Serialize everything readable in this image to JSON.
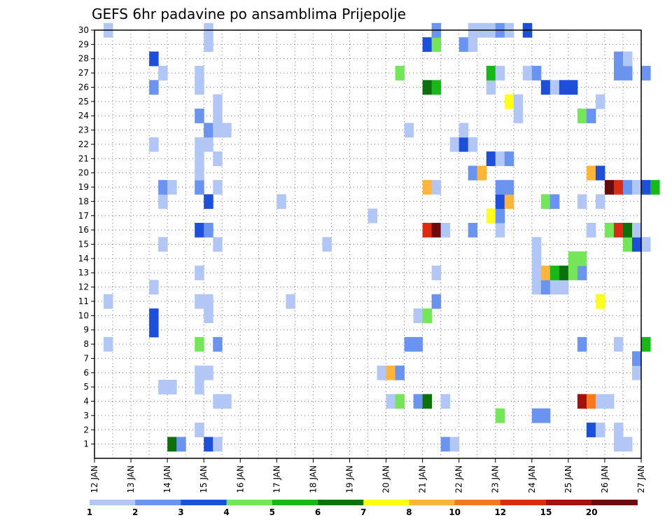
{
  "chart_data": {
    "type": "heatmap",
    "title": "GEFS 6hr padavine po ansamblima Prijepolje",
    "y_ticks": [
      "1",
      "2",
      "3",
      "4",
      "5",
      "6",
      "7",
      "8",
      "9",
      "10",
      "11",
      "12",
      "13",
      "14",
      "15",
      "16",
      "17",
      "18",
      "19",
      "20",
      "21",
      "22",
      "23",
      "24",
      "25",
      "26",
      "27",
      "28",
      "29",
      "30"
    ],
    "x_ticks": [
      "12 JAN",
      "13 JAN",
      "14 JAN",
      "15 JAN",
      "16 JAN",
      "17 JAN",
      "18 JAN",
      "19 JAN",
      "20 JAN",
      "21 JAN",
      "22 JAN",
      "23 JAN",
      "24 JAN",
      "25 JAN",
      "26 JAN",
      "27 JAN"
    ],
    "x_range": [
      "12 JAN",
      "27 JAN"
    ],
    "y_range": [
      0,
      30
    ],
    "grid": "dotted",
    "legend_placement": "bottom",
    "legend_levels": [
      "1",
      "2",
      "3",
      "4",
      "5",
      "6",
      "7",
      "8",
      "10",
      "12",
      "15",
      "20"
    ],
    "legend_colors": [
      "#b3c7f7",
      "#6b93f0",
      "#1e4fd8",
      "#75e55a",
      "#17b917",
      "#0d700d",
      "#ffff1a",
      "#ffb43a",
      "#f7791f",
      "#dc2b14",
      "#a4100d",
      "#6a0b0b"
    ],
    "cell_step_hours": 6,
    "x_labels_in_plot_units": false,
    "cells": [
      [
        1,
        14.0,
        5
      ],
      [
        1,
        14.25,
        1
      ],
      [
        1,
        15.0,
        2
      ],
      [
        1,
        15.25,
        0
      ],
      [
        1,
        21.5,
        1
      ],
      [
        1,
        21.75,
        0
      ],
      [
        1,
        26.25,
        0
      ],
      [
        1,
        26.5,
        0
      ],
      [
        2,
        14.75,
        0
      ],
      [
        2,
        25.5,
        2
      ],
      [
        2,
        25.75,
        0
      ],
      [
        2,
        26.25,
        0
      ],
      [
        3,
        23.0,
        3
      ],
      [
        3,
        24.0,
        1
      ],
      [
        3,
        24.25,
        1
      ],
      [
        4,
        15.25,
        0
      ],
      [
        4,
        15.5,
        0
      ],
      [
        4,
        20.0,
        0
      ],
      [
        4,
        20.25,
        3
      ],
      [
        4,
        20.75,
        1
      ],
      [
        4,
        21.0,
        5
      ],
      [
        4,
        21.5,
        0
      ],
      [
        4,
        25.25,
        10
      ],
      [
        4,
        25.5,
        8
      ],
      [
        4,
        25.75,
        0
      ],
      [
        4,
        26.0,
        0
      ],
      [
        5,
        13.75,
        0
      ],
      [
        5,
        14.0,
        0
      ],
      [
        5,
        14.75,
        0
      ],
      [
        6,
        14.75,
        0
      ],
      [
        6,
        15.0,
        0
      ],
      [
        6,
        19.75,
        0
      ],
      [
        6,
        20.0,
        7
      ],
      [
        6,
        20.25,
        1
      ],
      [
        6,
        26.75,
        0
      ],
      [
        7,
        26.75,
        1
      ],
      [
        8,
        12.25,
        0
      ],
      [
        8,
        14.75,
        3
      ],
      [
        8,
        15.25,
        1
      ],
      [
        8,
        20.5,
        1
      ],
      [
        8,
        20.75,
        1
      ],
      [
        8,
        25.25,
        1
      ],
      [
        8,
        26.25,
        0
      ],
      [
        8,
        27.0,
        4
      ],
      [
        9,
        13.5,
        2
      ],
      [
        10,
        13.5,
        2
      ],
      [
        10,
        15.0,
        0
      ],
      [
        10,
        20.75,
        0
      ],
      [
        10,
        21.0,
        3
      ],
      [
        11,
        12.25,
        0
      ],
      [
        11,
        14.75,
        0
      ],
      [
        11,
        15.0,
        0
      ],
      [
        11,
        17.25,
        0
      ],
      [
        11,
        21.25,
        1
      ],
      [
        11,
        25.75,
        6
      ],
      [
        12,
        13.5,
        0
      ],
      [
        12,
        24.0,
        0
      ],
      [
        12,
        24.25,
        1
      ],
      [
        12,
        24.5,
        0
      ],
      [
        12,
        24.75,
        0
      ],
      [
        13,
        14.75,
        0
      ],
      [
        13,
        21.25,
        0
      ],
      [
        13,
        24.0,
        0
      ],
      [
        13,
        24.25,
        7
      ],
      [
        13,
        24.5,
        4
      ],
      [
        13,
        24.75,
        5
      ],
      [
        13,
        25.0,
        3
      ],
      [
        13,
        25.25,
        1
      ],
      [
        14,
        24.0,
        0
      ],
      [
        14,
        25.0,
        3
      ],
      [
        14,
        25.25,
        3
      ],
      [
        15,
        13.75,
        0
      ],
      [
        15,
        15.25,
        0
      ],
      [
        15,
        18.25,
        0
      ],
      [
        15,
        24.0,
        0
      ],
      [
        15,
        26.5,
        3
      ],
      [
        15,
        26.75,
        2
      ],
      [
        15,
        27.0,
        0
      ],
      [
        16,
        14.75,
        2
      ],
      [
        16,
        15.0,
        1
      ],
      [
        16,
        21.0,
        9
      ],
      [
        16,
        21.25,
        11
      ],
      [
        16,
        21.5,
        0
      ],
      [
        16,
        22.25,
        1
      ],
      [
        16,
        23.0,
        0
      ],
      [
        16,
        25.5,
        0
      ],
      [
        16,
        26.0,
        3
      ],
      [
        16,
        26.25,
        9
      ],
      [
        16,
        26.5,
        5
      ],
      [
        16,
        26.75,
        0
      ],
      [
        17,
        19.5,
        0
      ],
      [
        17,
        22.75,
        6
      ],
      [
        17,
        23.0,
        1
      ],
      [
        18,
        13.75,
        0
      ],
      [
        18,
        15.0,
        2
      ],
      [
        18,
        17.0,
        0
      ],
      [
        18,
        23.0,
        2
      ],
      [
        18,
        23.25,
        7
      ],
      [
        18,
        24.25,
        3
      ],
      [
        18,
        24.5,
        1
      ],
      [
        18,
        25.25,
        0
      ],
      [
        18,
        25.75,
        0
      ],
      [
        19,
        13.75,
        1
      ],
      [
        19,
        14.0,
        0
      ],
      [
        19,
        14.75,
        1
      ],
      [
        19,
        15.25,
        0
      ],
      [
        19,
        21.0,
        7
      ],
      [
        19,
        21.25,
        0
      ],
      [
        19,
        23.0,
        1
      ],
      [
        19,
        23.25,
        1
      ],
      [
        19,
        26.0,
        11
      ],
      [
        19,
        26.25,
        9
      ],
      [
        19,
        26.5,
        1
      ],
      [
        19,
        26.75,
        0
      ],
      [
        19,
        27.0,
        2
      ],
      [
        19,
        27.25,
        4
      ],
      [
        20,
        14.75,
        0
      ],
      [
        20,
        22.25,
        1
      ],
      [
        20,
        22.5,
        7
      ],
      [
        20,
        25.5,
        7
      ],
      [
        20,
        25.75,
        2
      ],
      [
        21,
        14.75,
        0
      ],
      [
        21,
        15.25,
        0
      ],
      [
        21,
        22.75,
        2
      ],
      [
        21,
        23.0,
        0
      ],
      [
        21,
        23.25,
        1
      ],
      [
        22,
        13.5,
        0
      ],
      [
        22,
        14.75,
        0
      ],
      [
        22,
        15.0,
        0
      ],
      [
        22,
        21.75,
        0
      ],
      [
        22,
        22.0,
        2
      ],
      [
        22,
        22.25,
        0
      ],
      [
        23,
        15.0,
        1
      ],
      [
        23,
        15.25,
        0
      ],
      [
        23,
        15.5,
        0
      ],
      [
        23,
        20.5,
        0
      ],
      [
        23,
        22.0,
        0
      ],
      [
        24,
        14.75,
        1
      ],
      [
        24,
        15.25,
        0
      ],
      [
        24,
        23.5,
        0
      ],
      [
        24,
        25.25,
        3
      ],
      [
        24,
        25.5,
        1
      ],
      [
        25,
        15.25,
        0
      ],
      [
        25,
        23.25,
        6
      ],
      [
        25,
        23.5,
        0
      ],
      [
        25,
        25.75,
        0
      ],
      [
        26,
        13.5,
        1
      ],
      [
        26,
        14.75,
        0
      ],
      [
        26,
        21.0,
        5
      ],
      [
        26,
        21.25,
        4
      ],
      [
        26,
        22.75,
        0
      ],
      [
        26,
        24.25,
        2
      ],
      [
        26,
        24.5,
        0
      ],
      [
        26,
        24.75,
        2
      ],
      [
        26,
        25.0,
        2
      ],
      [
        27,
        13.75,
        0
      ],
      [
        27,
        14.75,
        0
      ],
      [
        27,
        20.25,
        3
      ],
      [
        27,
        22.75,
        4
      ],
      [
        27,
        23.0,
        0
      ],
      [
        27,
        23.75,
        0
      ],
      [
        27,
        24.0,
        1
      ],
      [
        27,
        26.25,
        1
      ],
      [
        27,
        26.5,
        1
      ],
      [
        27,
        27.0,
        1
      ],
      [
        28,
        13.5,
        2
      ],
      [
        28,
        26.25,
        1
      ],
      [
        28,
        26.5,
        0
      ],
      [
        29,
        15.0,
        0
      ],
      [
        29,
        21.0,
        2
      ],
      [
        29,
        21.25,
        3
      ],
      [
        29,
        22.0,
        1
      ],
      [
        29,
        22.25,
        0
      ],
      [
        30,
        12.25,
        0
      ],
      [
        30,
        15.0,
        0
      ],
      [
        30,
        21.25,
        1
      ],
      [
        30,
        22.25,
        0
      ],
      [
        30,
        22.5,
        0
      ],
      [
        30,
        22.75,
        0
      ],
      [
        30,
        23.0,
        1
      ],
      [
        30,
        23.25,
        0
      ],
      [
        30,
        23.75,
        2
      ]
    ]
  }
}
